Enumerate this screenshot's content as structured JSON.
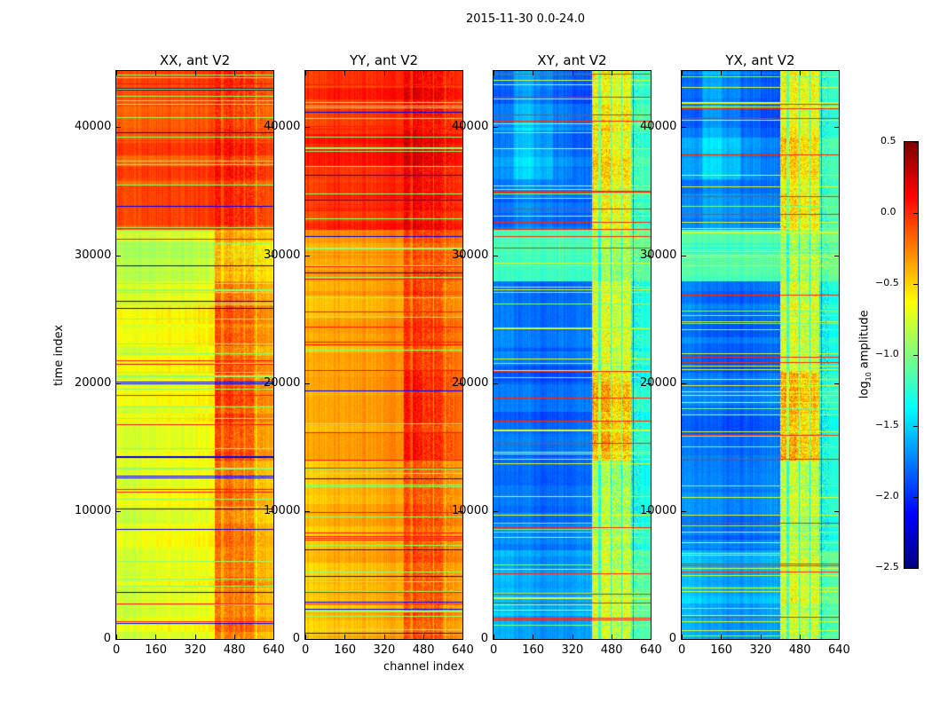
{
  "suptitle": "2015-11-30 0.0-24.0",
  "xlabel": "channel index",
  "ylabel": "time index",
  "colorbar": {
    "label_main": "log",
    "label_sub": "10",
    "label_rest": " amplitude",
    "range": [
      -2.5,
      0.5
    ],
    "ticks": [
      "0.5",
      "0.0",
      "−0.5",
      "−1.0",
      "−1.5",
      "−2.0",
      "−2.5"
    ],
    "tick_values": [
      0.5,
      0,
      -0.5,
      -1,
      -1.5,
      -2,
      -2.5
    ],
    "colormap": "jet"
  },
  "chart_data": {
    "type": "heatmap",
    "xlim": [
      0,
      640
    ],
    "ylim": [
      0,
      44400
    ],
    "xticks": [
      "0",
      "160",
      "320",
      "480",
      "640"
    ],
    "xtick_values": [
      0,
      160,
      320,
      480,
      640
    ],
    "yticks": [
      "0",
      "10000",
      "20000",
      "30000",
      "40000"
    ],
    "ytick_values": [
      0,
      10000,
      20000,
      30000,
      40000
    ],
    "time_block_edges": [
      0,
      7000,
      14000,
      21000,
      28000,
      32000,
      36000,
      40000,
      44400
    ],
    "channel_block_edges": [
      0,
      80,
      160,
      240,
      320,
      400,
      480,
      560,
      640
    ],
    "panels": [
      {
        "title": "XX, ant V2",
        "values": [
          [
            -0.75,
            -0.7,
            -0.68,
            -0.68,
            -0.65,
            -0.2,
            -0.2,
            -0.4
          ],
          [
            -0.75,
            -0.7,
            -0.68,
            -0.68,
            -0.65,
            -0.2,
            -0.25,
            -0.45
          ],
          [
            -0.7,
            -0.68,
            -0.66,
            -0.66,
            -0.62,
            -0.05,
            -0.1,
            -0.3
          ],
          [
            -0.7,
            -0.68,
            -0.66,
            -0.66,
            -0.62,
            -0.15,
            -0.2,
            -0.35
          ],
          [
            -0.8,
            -0.8,
            -0.78,
            -0.78,
            -0.75,
            -0.35,
            -0.4,
            -0.5
          ],
          [
            -0.15,
            -0.12,
            -0.12,
            -0.12,
            -0.1,
            0.0,
            -0.05,
            -0.15
          ],
          [
            -0.12,
            -0.1,
            -0.1,
            -0.1,
            -0.08,
            0.05,
            0.0,
            -0.1
          ],
          [
            -0.15,
            -0.12,
            -0.12,
            -0.12,
            -0.1,
            0.0,
            -0.05,
            -0.15
          ]
        ]
      },
      {
        "title": "YY, ant V2",
        "values": [
          [
            -0.45,
            -0.4,
            -0.38,
            -0.38,
            -0.35,
            -0.1,
            -0.12,
            -0.3
          ],
          [
            -0.45,
            -0.4,
            -0.38,
            -0.38,
            -0.35,
            -0.1,
            -0.15,
            -0.3
          ],
          [
            -0.4,
            -0.38,
            -0.36,
            -0.36,
            -0.33,
            0.05,
            -0.05,
            -0.2
          ],
          [
            -0.4,
            -0.38,
            -0.36,
            -0.36,
            -0.33,
            -0.05,
            -0.1,
            -0.25
          ],
          [
            -0.35,
            -0.33,
            -0.32,
            -0.32,
            -0.3,
            -0.1,
            -0.12,
            -0.2
          ],
          [
            -0.05,
            0.0,
            0.0,
            0.0,
            0.02,
            0.15,
            0.1,
            0.0
          ],
          [
            0.0,
            0.02,
            0.02,
            0.02,
            0.05,
            0.2,
            0.12,
            0.02
          ],
          [
            -0.05,
            0.0,
            0.0,
            0.0,
            0.02,
            0.15,
            0.1,
            0.0
          ]
        ]
      },
      {
        "title": "XY, ant V2",
        "values": [
          [
            -1.55,
            -1.6,
            -1.65,
            -1.65,
            -1.6,
            -0.7,
            -0.75,
            -1.1
          ],
          [
            -1.75,
            -1.75,
            -1.8,
            -1.8,
            -1.75,
            -0.8,
            -0.85,
            -1.3
          ],
          [
            -1.8,
            -1.8,
            -1.85,
            -1.85,
            -1.8,
            -0.4,
            -0.5,
            -1.3
          ],
          [
            -1.75,
            -1.8,
            -1.82,
            -1.82,
            -1.78,
            -0.7,
            -0.75,
            -1.3
          ],
          [
            -1.2,
            -1.2,
            -1.2,
            -1.2,
            -1.2,
            -0.9,
            -0.9,
            -1.1
          ],
          [
            -1.8,
            -1.7,
            -1.75,
            -1.8,
            -1.8,
            -0.6,
            -0.65,
            -1.2
          ],
          [
            -1.7,
            -1.5,
            -1.6,
            -1.75,
            -1.8,
            -0.5,
            -0.6,
            -1.2
          ],
          [
            -1.8,
            -1.6,
            -1.7,
            -1.8,
            -1.85,
            -0.6,
            -0.65,
            -1.2
          ]
        ]
      },
      {
        "title": "YX, ant V2",
        "values": [
          [
            -1.55,
            -1.6,
            -1.65,
            -1.65,
            -1.6,
            -0.7,
            -0.75,
            -1.1
          ],
          [
            -1.75,
            -1.75,
            -1.8,
            -1.8,
            -1.75,
            -0.8,
            -0.85,
            -1.3
          ],
          [
            -1.8,
            -1.8,
            -1.85,
            -1.85,
            -1.8,
            -0.4,
            -0.5,
            -1.3
          ],
          [
            -1.75,
            -1.8,
            -1.82,
            -1.82,
            -1.78,
            -0.7,
            -0.75,
            -1.3
          ],
          [
            -1.2,
            -1.2,
            -1.2,
            -1.2,
            -1.2,
            -0.9,
            -0.9,
            -1.1
          ],
          [
            -1.8,
            -1.7,
            -1.75,
            -1.8,
            -1.8,
            -0.6,
            -0.65,
            -1.2
          ],
          [
            -1.7,
            -1.5,
            -1.6,
            -1.75,
            -1.8,
            -0.5,
            -0.6,
            -1.2
          ],
          [
            -1.8,
            -1.6,
            -1.7,
            -1.8,
            -1.85,
            -0.6,
            -0.65,
            -1.2
          ]
        ]
      }
    ]
  }
}
